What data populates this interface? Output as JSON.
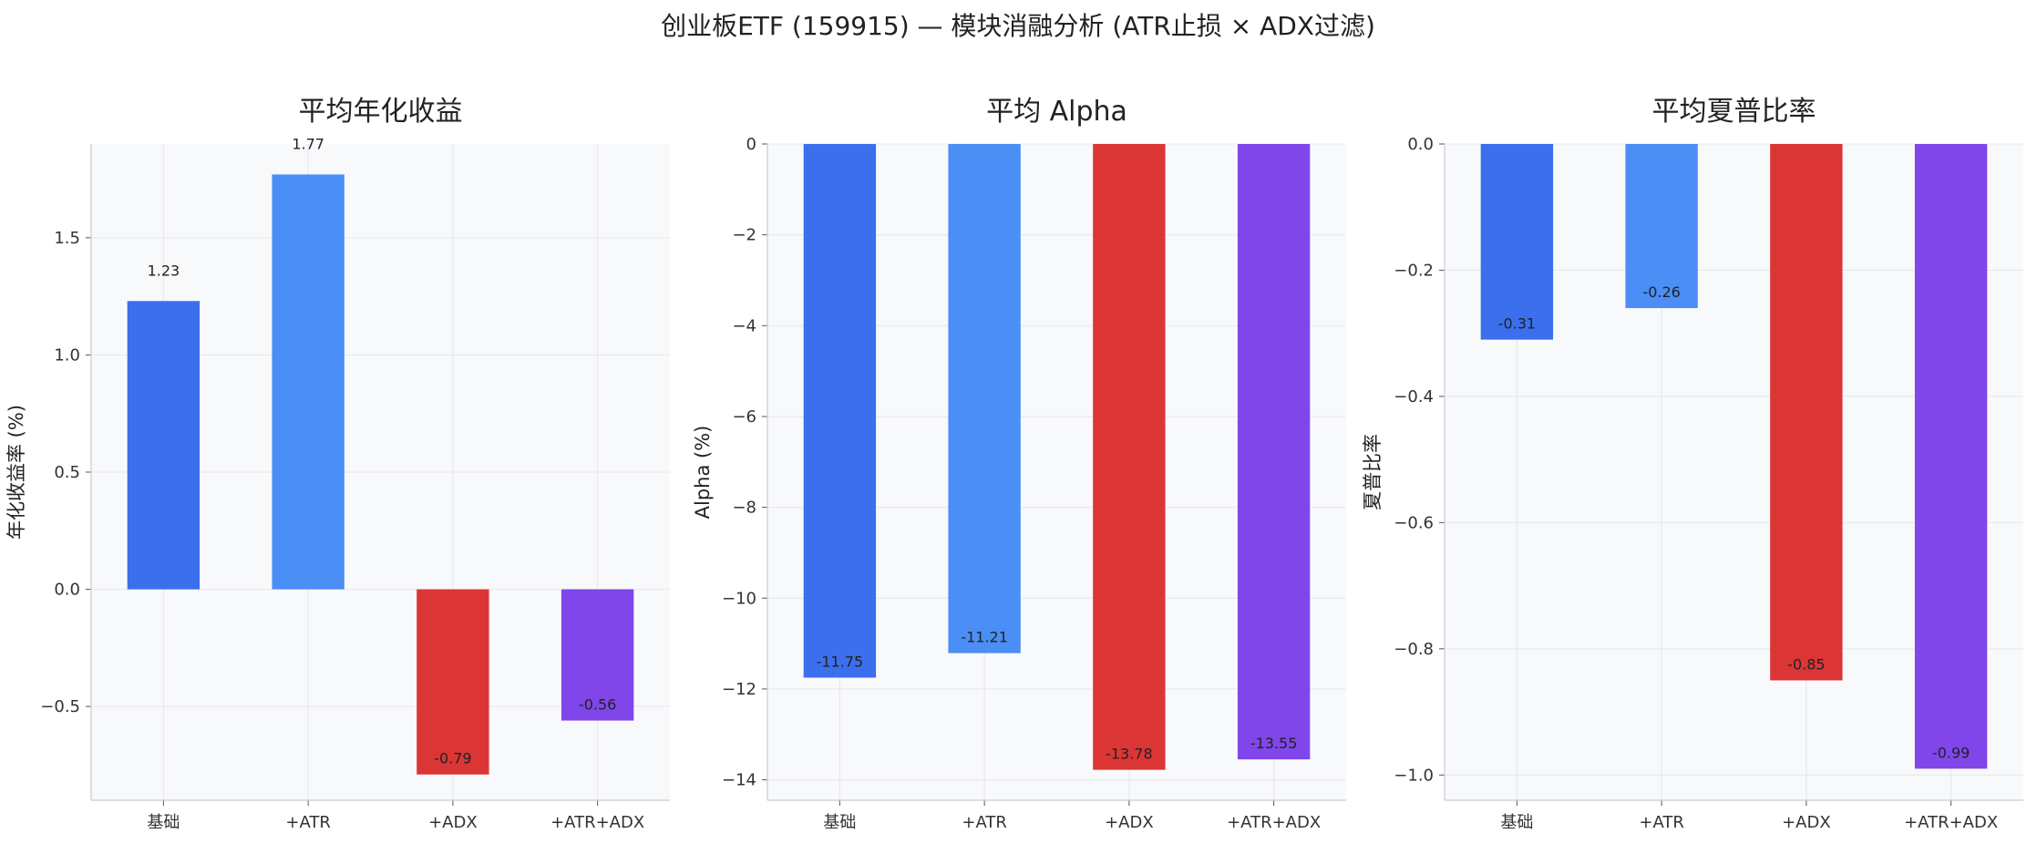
{
  "suptitle": "创业板ETF (159915) — 模块消融分析 (ATR止损 × ADX过滤)",
  "chart_data": [
    {
      "type": "bar",
      "title": "平均年化收益",
      "xlabel": "",
      "ylabel": "年化收益率 (%)",
      "categories": [
        "基础",
        "+ATR",
        "+ADX",
        "+ATR+ADX"
      ],
      "values": [
        1.23,
        1.77,
        -0.79,
        -0.56
      ],
      "value_labels": [
        "1.23",
        "1.77",
        "-0.79",
        "-0.56"
      ],
      "ylim": [
        -0.9,
        1.9
      ],
      "yticks": [
        -0.5,
        0.0,
        0.5,
        1.0,
        1.5
      ],
      "ytick_labels": [
        "−0.5",
        "0.0",
        "0.5",
        "1.0",
        "1.5"
      ],
      "grid": true
    },
    {
      "type": "bar",
      "title": "平均 Alpha",
      "xlabel": "",
      "ylabel": "Alpha (%)",
      "categories": [
        "基础",
        "+ATR",
        "+ADX",
        "+ATR+ADX"
      ],
      "values": [
        -11.75,
        -11.21,
        -13.78,
        -13.55
      ],
      "value_labels": [
        "-11.75",
        "-11.21",
        "-13.78",
        "-13.55"
      ],
      "ylim": [
        -14.45,
        0
      ],
      "yticks": [
        -14,
        -12,
        -10,
        -8,
        -6,
        -4,
        -2,
        0
      ],
      "ytick_labels": [
        "−14",
        "−12",
        "−10",
        "−8",
        "−6",
        "−4",
        "−2",
        "0"
      ],
      "grid": true
    },
    {
      "type": "bar",
      "title": "平均夏普比率",
      "xlabel": "",
      "ylabel": "夏普比率",
      "categories": [
        "基础",
        "+ATR",
        "+ADX",
        "+ATR+ADX"
      ],
      "values": [
        -0.31,
        -0.26,
        -0.85,
        -0.99
      ],
      "value_labels": [
        "-0.31",
        "-0.26",
        "-0.85",
        "-0.99"
      ],
      "ylim": [
        -1.04,
        0
      ],
      "yticks": [
        -1.0,
        -0.8,
        -0.6,
        -0.4,
        -0.2,
        0.0
      ],
      "ytick_labels": [
        "−1.0",
        "−0.8",
        "−0.6",
        "−0.4",
        "−0.2",
        "0.0"
      ],
      "grid": true
    }
  ],
  "colors": [
    "#3b6fed",
    "#4b8ef6",
    "#dc3535",
    "#8046ea"
  ]
}
